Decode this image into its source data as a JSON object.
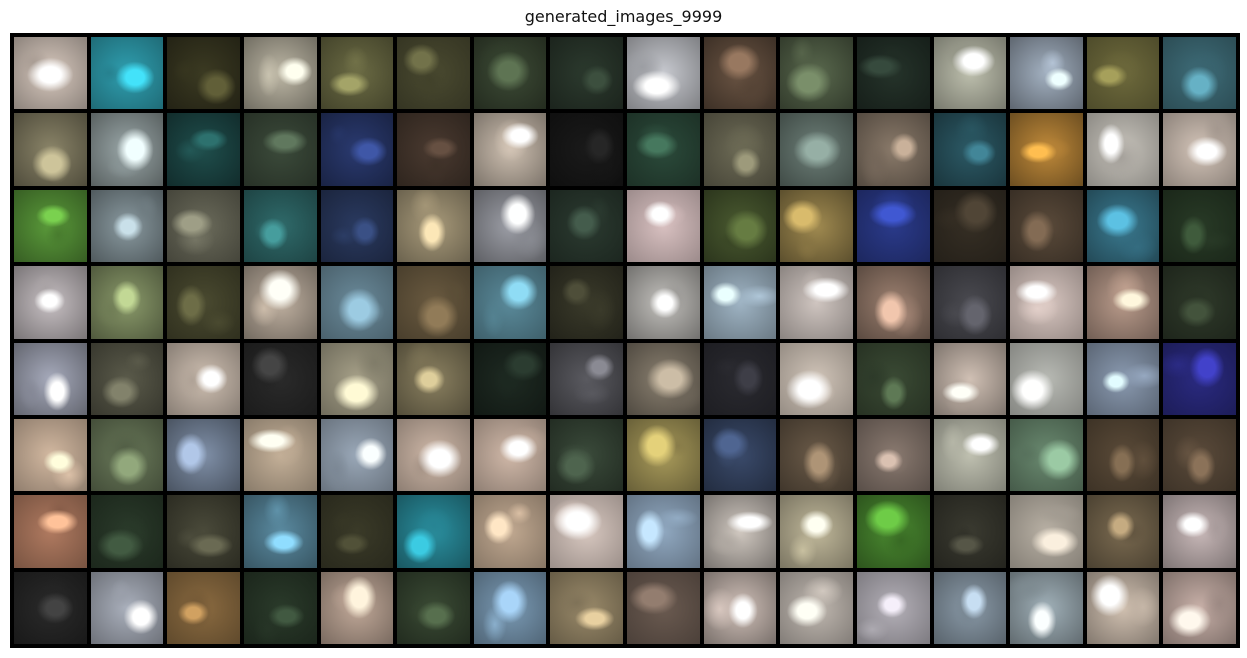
{
  "title": "generated_images_9999",
  "grid": {
    "rows": 8,
    "cols": 16
  },
  "tiles": [
    [
      "#d8c9be",
      "#2f9fb0",
      "#3b3a22",
      "#bdb7a5",
      "#6b6b44",
      "#4a4a30",
      "#3c4a35",
      "#2c3a2e",
      "#c7c9cf",
      "#6a5443",
      "#59684d",
      "#25332a",
      "#bdbfad",
      "#a3b1c1",
      "#6e6a3c",
      "#3e6c78"
    ],
    [
      "#8a8468",
      "#9aa7a8",
      "#1f4e4c",
      "#3b4a3a",
      "#2a3a70",
      "#4a3a30",
      "#cdbfb0",
      "#1a1a1a",
      "#2b4a3a",
      "#6c6a55",
      "#6d7f78",
      "#8a7a6a",
      "#2c5a66",
      "#c08a3a",
      "#c7c3bb",
      "#d3c4b8"
    ],
    [
      "#5a9a3a",
      "#8a9aa0",
      "#6a6a5a",
      "#2f6a6a",
      "#2a3a60",
      "#a89a7a",
      "#9c9ea6",
      "#2b3a30",
      "#d8c0c0",
      "#4a5a30",
      "#a08a50",
      "#2a3a8a",
      "#352e24",
      "#5a4a3a",
      "#3a7a90",
      "#283a26"
    ],
    [
      "#c7c0c3",
      "#8a9a6a",
      "#4a4a30",
      "#bfb0a0",
      "#6a8a9a",
      "#6a5a40",
      "#5a8a9a",
      "#3a3a2a",
      "#c2c0bc",
      "#9fb4c4",
      "#cfc5c0",
      "#9b7f6f",
      "#4a4a50",
      "#d8c6c0",
      "#b89a8a",
      "#2f3a2a"
    ],
    [
      "#a6aabb",
      "#5a5a4a",
      "#cfc0b2",
      "#2a2a2a",
      "#a6a088",
      "#8a8060",
      "#1e2a22",
      "#5a5a60",
      "#8a8070",
      "#2a2a30",
      "#d0c4b8",
      "#3a4a34",
      "#d0c0b4",
      "#b8bab4",
      "#8a9ab0",
      "#2a2a80"
    ],
    [
      "#d2b8a0",
      "#6a7a5a",
      "#8090a8",
      "#c4b098",
      "#9aa8b8",
      "#cfb8a8",
      "#d0b8a8",
      "#3a4a3a",
      "#a89a5a",
      "#3a4a6a",
      "#6a5a48",
      "#8a7a70",
      "#bfc0b0",
      "#6a8a70",
      "#5a4a38",
      "#5a4a3a"
    ],
    [
      "#b07a60",
      "#2a3a2a",
      "#4a4a3a",
      "#5a8aa0",
      "#3a3a28",
      "#2a90a0",
      "#c0a890",
      "#d8c8c0",
      "#90a8c0",
      "#d0c8c0",
      "#c0b89a",
      "#4a8a30",
      "#3a3a30",
      "#b8b0a4",
      "#7a6a50",
      "#c8b8b8"
    ],
    [
      "#2a2a2a",
      "#aab0bc",
      "#8a6a40",
      "#2a3a2a",
      "#c0a898",
      "#3a4a34",
      "#7a9ab4",
      "#9a8a6a",
      "#6a5a50",
      "#d0c0b8",
      "#c0b8b0",
      "#b4b0b8",
      "#8a9aa8",
      "#a0b0b8",
      "#d0c0b0",
      "#c8b0a8"
    ]
  ]
}
